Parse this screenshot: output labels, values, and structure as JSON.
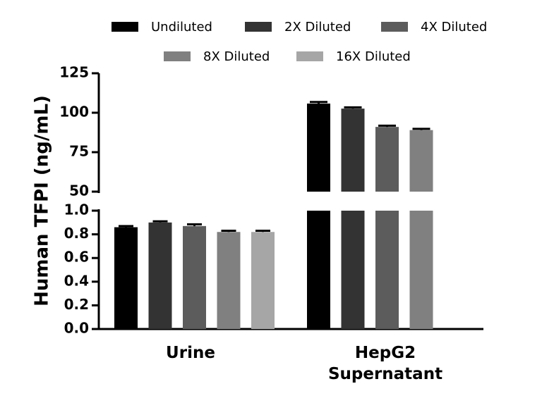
{
  "chart_data": {
    "type": "bar",
    "ylabel": "Human TFPI (ng/mL)",
    "categories": [
      "Urine",
      "HepG2\nSupernatant"
    ],
    "series": [
      {
        "name": "Undiluted",
        "color": "#000000",
        "values": [
          0.86,
          105.8
        ],
        "errors": [
          0.01,
          1.0
        ]
      },
      {
        "name": "2X Diluted",
        "color": "#333333",
        "values": [
          0.9,
          102.6
        ],
        "errors": [
          0.01,
          0.8
        ]
      },
      {
        "name": "4X Diluted",
        "color": "#5c5c5c",
        "values": [
          0.87,
          91.0
        ],
        "errors": [
          0.015,
          0.8
        ]
      },
      {
        "name": "8X Diluted",
        "color": "#808080",
        "values": [
          0.82,
          89.0
        ],
        "errors": [
          0.01,
          0.8
        ]
      },
      {
        "name": "16X Diluted",
        "color": "#a6a6a6",
        "values": [
          0.82,
          null
        ],
        "errors": [
          0.01,
          null
        ]
      }
    ],
    "y_axis_segments": [
      {
        "range": [
          0,
          1.0
        ],
        "ticks": [
          "0.0",
          "0.2",
          "0.4",
          "0.6",
          "0.8",
          "1.0"
        ]
      },
      {
        "range": [
          50,
          125
        ],
        "ticks": [
          "50",
          "75",
          "100",
          "125"
        ]
      }
    ],
    "legend": "top",
    "grid": false
  }
}
